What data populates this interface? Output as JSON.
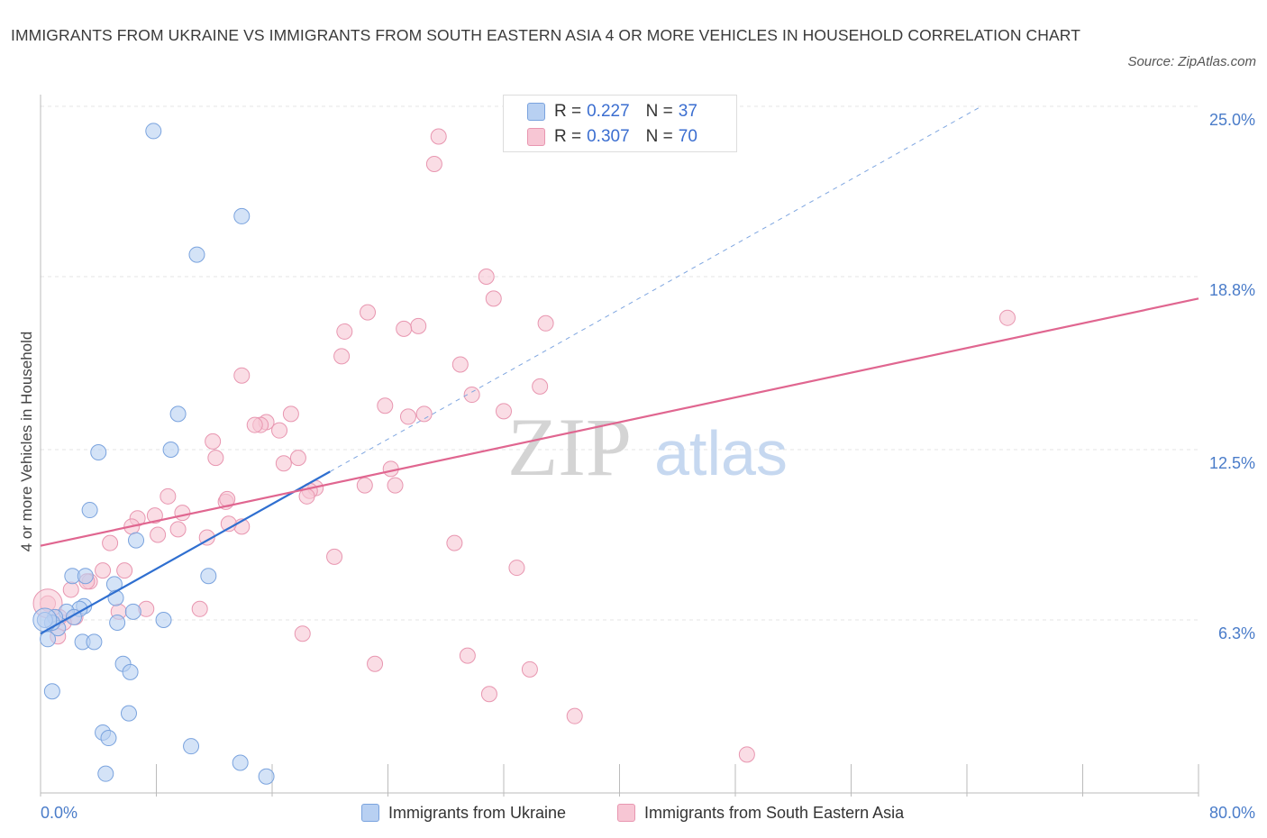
{
  "header": {
    "title": "IMMIGRANTS FROM UKRAINE VS IMMIGRANTS FROM SOUTH EASTERN ASIA 4 OR MORE VEHICLES IN HOUSEHOLD CORRELATION CHART",
    "source": "Source: ZipAtlas.com"
  },
  "watermark": {
    "zip": "ZIP",
    "atlas": "atlas"
  },
  "legend": {
    "r_label": "R =",
    "n_label": "N =",
    "series1": {
      "r": "0.227",
      "n": "37"
    },
    "series2": {
      "r": "0.307",
      "n": "70"
    }
  },
  "bottom_legend": {
    "series1": "Immigrants from Ukraine",
    "series2": "Immigrants from South Eastern Asia"
  },
  "colors": {
    "ukraine_fill": "#b8d0f2",
    "ukraine_stroke": "#7aa3de",
    "ukraine_line": "#2f6fd0",
    "sea_fill": "#f7c6d4",
    "sea_stroke": "#e896b0",
    "sea_line": "#e06690",
    "tick_label": "#4a7cc9",
    "grid": "#e4e4e4"
  },
  "chart_data": {
    "type": "scatter",
    "title": "IMMIGRANTS FROM UKRAINE VS IMMIGRANTS FROM SOUTH EASTERN ASIA 4 OR MORE VEHICLES IN HOUSEHOLD CORRELATION CHART",
    "xlabel": "",
    "ylabel": "4 or more Vehicles in Household",
    "xlim": [
      0,
      80
    ],
    "ylim": [
      0,
      25
    ],
    "x_tick_labels": [
      "0.0%",
      "80.0%"
    ],
    "y_ticks": [
      6.3,
      12.5,
      18.8,
      25.0
    ],
    "y_tick_labels": [
      "6.3%",
      "12.5%",
      "18.8%",
      "25.0%"
    ],
    "grid": true,
    "legend_position": "top-center",
    "series": [
      {
        "name": "Immigrants from Ukraine",
        "r": 0.227,
        "n": 37,
        "trend": {
          "x": [
            0,
            20
          ],
          "y": [
            5.8,
            11.7
          ],
          "extended_to": [
            65,
            25
          ]
        },
        "points": [
          [
            7.8,
            24.1
          ],
          [
            13.9,
            21.0
          ],
          [
            10.8,
            19.6
          ],
          [
            9.5,
            13.8
          ],
          [
            9.0,
            12.5
          ],
          [
            4.0,
            12.4
          ],
          [
            3.4,
            10.3
          ],
          [
            6.6,
            9.2
          ],
          [
            2.2,
            7.9
          ],
          [
            3.1,
            7.9
          ],
          [
            11.6,
            7.9
          ],
          [
            5.1,
            7.6
          ],
          [
            5.2,
            7.1
          ],
          [
            3.0,
            6.8
          ],
          [
            2.7,
            6.7
          ],
          [
            1.8,
            6.6
          ],
          [
            6.4,
            6.6
          ],
          [
            2.3,
            6.4
          ],
          [
            8.5,
            6.3
          ],
          [
            1.0,
            6.4
          ],
          [
            5.3,
            6.2
          ],
          [
            1.2,
            6.0
          ],
          [
            0.8,
            6.2
          ],
          [
            2.9,
            5.5
          ],
          [
            3.7,
            5.5
          ],
          [
            0.5,
            5.6
          ],
          [
            5.7,
            4.7
          ],
          [
            6.2,
            4.4
          ],
          [
            0.8,
            3.7
          ],
          [
            6.1,
            2.9
          ],
          [
            4.3,
            2.2
          ],
          [
            4.7,
            2.0
          ],
          [
            10.4,
            1.7
          ],
          [
            13.8,
            1.1
          ],
          [
            4.5,
            0.7
          ],
          [
            15.6,
            0.6
          ],
          [
            0.3,
            6.3
          ]
        ]
      },
      {
        "name": "Immigrants from South Eastern Asia",
        "r": 0.307,
        "n": 70,
        "trend": {
          "x": [
            0,
            80
          ],
          "y": [
            9.0,
            18.0
          ]
        },
        "points": [
          [
            27.5,
            23.9
          ],
          [
            27.2,
            22.9
          ],
          [
            30.8,
            18.8
          ],
          [
            31.3,
            18.0
          ],
          [
            22.6,
            17.5
          ],
          [
            34.9,
            17.1
          ],
          [
            26.1,
            17.0
          ],
          [
            25.1,
            16.9
          ],
          [
            21.0,
            16.8
          ],
          [
            66.8,
            17.3
          ],
          [
            20.8,
            15.9
          ],
          [
            29.0,
            15.6
          ],
          [
            13.9,
            15.2
          ],
          [
            34.5,
            14.8
          ],
          [
            29.8,
            14.5
          ],
          [
            23.8,
            14.1
          ],
          [
            32.0,
            13.9
          ],
          [
            17.3,
            13.8
          ],
          [
            26.5,
            13.8
          ],
          [
            25.4,
            13.7
          ],
          [
            15.6,
            13.5
          ],
          [
            15.2,
            13.4
          ],
          [
            14.8,
            13.4
          ],
          [
            16.5,
            13.2
          ],
          [
            11.9,
            12.8
          ],
          [
            17.8,
            12.2
          ],
          [
            16.8,
            12.0
          ],
          [
            12.1,
            12.2
          ],
          [
            24.2,
            11.8
          ],
          [
            22.4,
            11.2
          ],
          [
            24.5,
            11.2
          ],
          [
            19.0,
            11.1
          ],
          [
            18.6,
            11.0
          ],
          [
            18.4,
            10.8
          ],
          [
            8.8,
            10.8
          ],
          [
            12.8,
            10.6
          ],
          [
            12.9,
            10.7
          ],
          [
            9.8,
            10.2
          ],
          [
            7.9,
            10.1
          ],
          [
            6.7,
            10.0
          ],
          [
            6.3,
            9.7
          ],
          [
            13.9,
            9.7
          ],
          [
            13.0,
            9.8
          ],
          [
            9.5,
            9.6
          ],
          [
            11.5,
            9.3
          ],
          [
            8.1,
            9.4
          ],
          [
            4.8,
            9.1
          ],
          [
            28.6,
            9.1
          ],
          [
            20.3,
            8.6
          ],
          [
            32.9,
            8.2
          ],
          [
            5.8,
            8.1
          ],
          [
            4.3,
            8.1
          ],
          [
            3.4,
            7.7
          ],
          [
            2.1,
            7.4
          ],
          [
            3.2,
            7.7
          ],
          [
            7.3,
            6.7
          ],
          [
            11.0,
            6.7
          ],
          [
            5.4,
            6.6
          ],
          [
            2.4,
            6.4
          ],
          [
            1.6,
            6.2
          ],
          [
            1.3,
            6.4
          ],
          [
            18.1,
            5.8
          ],
          [
            29.5,
            5.0
          ],
          [
            23.1,
            4.7
          ],
          [
            33.8,
            4.5
          ],
          [
            31.0,
            3.6
          ],
          [
            36.9,
            2.8
          ],
          [
            48.8,
            1.4
          ],
          [
            0.5,
            6.9
          ],
          [
            1.2,
            5.7
          ]
        ]
      }
    ]
  }
}
